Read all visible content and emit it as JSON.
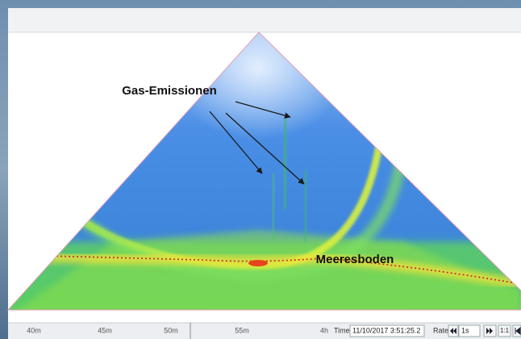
{
  "annotations": {
    "gas": "Gas-Emissionen",
    "seabed": "Meeresboden"
  },
  "status_bar": {
    "scale": [
      "40m",
      "45m",
      "50m",
      "55m",
      "4h"
    ],
    "time_label": "Time:",
    "time": "11/10/2017 3:51:25.2",
    "rate_label": "Rate:",
    "rate": "1s",
    "zoom": "1:1"
  }
}
